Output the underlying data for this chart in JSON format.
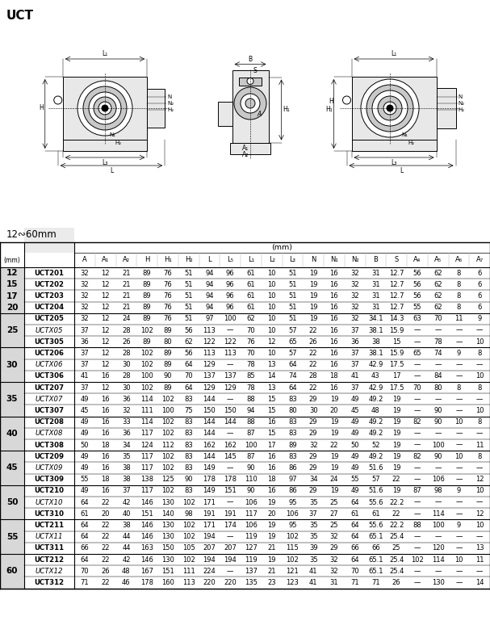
{
  "title": "UCT",
  "subtitle": "12∾60mm",
  "columns": [
    "A",
    "A₁",
    "A₂",
    "H",
    "H₁",
    "H₂",
    "L",
    "L₅",
    "L₁",
    "L₂",
    "L₃",
    "N",
    "N₁",
    "N₂",
    "B",
    "S",
    "A₄",
    "A₅",
    "A₆",
    "A₇"
  ],
  "rows": [
    {
      "shaft": "12",
      "model": "UCT201",
      "style": "bold",
      "vals": [
        "32",
        "12",
        "21",
        "89",
        "76",
        "51",
        "94",
        "96",
        "61",
        "10",
        "51",
        "19",
        "16",
        "32",
        "31",
        "12.7",
        "56",
        "62",
        "8",
        "6"
      ]
    },
    {
      "shaft": "15",
      "model": "UCT202",
      "style": "bold",
      "vals": [
        "32",
        "12",
        "21",
        "89",
        "76",
        "51",
        "94",
        "96",
        "61",
        "10",
        "51",
        "19",
        "16",
        "32",
        "31",
        "12.7",
        "56",
        "62",
        "8",
        "6"
      ]
    },
    {
      "shaft": "17",
      "model": "UCT203",
      "style": "bold",
      "vals": [
        "32",
        "12",
        "21",
        "89",
        "76",
        "51",
        "94",
        "96",
        "61",
        "10",
        "51",
        "19",
        "16",
        "32",
        "31",
        "12.7",
        "56",
        "62",
        "8",
        "6"
      ]
    },
    {
      "shaft": "20",
      "model": "UCT204",
      "style": "bold",
      "vals": [
        "32",
        "12",
        "21",
        "89",
        "76",
        "51",
        "94",
        "96",
        "61",
        "10",
        "51",
        "19",
        "16",
        "32",
        "31",
        "12.7",
        "55",
        "62",
        "8",
        "6"
      ]
    },
    {
      "shaft": "",
      "model": "UCT205",
      "style": "bold",
      "vals": [
        "32",
        "12",
        "24",
        "89",
        "76",
        "51",
        "97",
        "100",
        "62",
        "10",
        "51",
        "19",
        "16",
        "32",
        "34.1",
        "14.3",
        "63",
        "70",
        "11",
        "9"
      ]
    },
    {
      "shaft": "25",
      "model": "UCTX05",
      "style": "italic",
      "vals": [
        "37",
        "12",
        "28",
        "102",
        "89",
        "56",
        "113",
        "—",
        "70",
        "10",
        "57",
        "22",
        "16",
        "37",
        "38.1",
        "15.9",
        "—",
        "—",
        "—",
        "—"
      ]
    },
    {
      "shaft": "",
      "model": "UCT305",
      "style": "bold",
      "vals": [
        "36",
        "12",
        "26",
        "89",
        "80",
        "62",
        "122",
        "122",
        "76",
        "12",
        "65",
        "26",
        "16",
        "36",
        "38",
        "15",
        "—",
        "78",
        "—",
        "10"
      ]
    },
    {
      "shaft": "",
      "model": "UCT206",
      "style": "bold",
      "vals": [
        "37",
        "12",
        "28",
        "102",
        "89",
        "56",
        "113",
        "113",
        "70",
        "10",
        "57",
        "22",
        "16",
        "37",
        "38.1",
        "15.9",
        "65",
        "74",
        "9",
        "8"
      ]
    },
    {
      "shaft": "30",
      "model": "UCTX06",
      "style": "italic",
      "vals": [
        "37",
        "12",
        "30",
        "102",
        "89",
        "64",
        "129",
        "—",
        "78",
        "13",
        "64",
        "22",
        "16",
        "37",
        "42.9",
        "17.5",
        "—",
        "—",
        "—",
        "—"
      ]
    },
    {
      "shaft": "",
      "model": "UCT306",
      "style": "bold",
      "vals": [
        "41",
        "16",
        "28",
        "100",
        "90",
        "70",
        "137",
        "137",
        "85",
        "14",
        "74",
        "28",
        "18",
        "41",
        "43",
        "17",
        "—",
        "84",
        "—",
        "10"
      ]
    },
    {
      "shaft": "",
      "model": "UCT207",
      "style": "bold",
      "vals": [
        "37",
        "12",
        "30",
        "102",
        "89",
        "64",
        "129",
        "129",
        "78",
        "13",
        "64",
        "22",
        "16",
        "37",
        "42.9",
        "17.5",
        "70",
        "80",
        "8",
        "8"
      ]
    },
    {
      "shaft": "35",
      "model": "UCTX07",
      "style": "italic",
      "vals": [
        "49",
        "16",
        "36",
        "114",
        "102",
        "83",
        "144",
        "—",
        "88",
        "15",
        "83",
        "29",
        "19",
        "49",
        "49.2",
        "19",
        "—",
        "—",
        "—",
        "—"
      ]
    },
    {
      "shaft": "",
      "model": "UCT307",
      "style": "bold",
      "vals": [
        "45",
        "16",
        "32",
        "111",
        "100",
        "75",
        "150",
        "150",
        "94",
        "15",
        "80",
        "30",
        "20",
        "45",
        "48",
        "19",
        "—",
        "90",
        "—",
        "10"
      ]
    },
    {
      "shaft": "",
      "model": "UCT208",
      "style": "bold",
      "vals": [
        "49",
        "16",
        "33",
        "114",
        "102",
        "83",
        "144",
        "144",
        "88",
        "16",
        "83",
        "29",
        "19",
        "49",
        "49.2",
        "19",
        "82",
        "90",
        "10",
        "8"
      ]
    },
    {
      "shaft": "40",
      "model": "UCTX08",
      "style": "italic",
      "vals": [
        "49",
        "16",
        "36",
        "117",
        "102",
        "83",
        "144",
        "—",
        "87",
        "15",
        "83",
        "29",
        "19",
        "49",
        "49.2",
        "19",
        "—",
        "—",
        "—",
        "—"
      ]
    },
    {
      "shaft": "",
      "model": "UCT308",
      "style": "bold",
      "vals": [
        "50",
        "18",
        "34",
        "124",
        "112",
        "83",
        "162",
        "162",
        "100",
        "17",
        "89",
        "32",
        "22",
        "50",
        "52",
        "19",
        "—",
        "100",
        "—",
        "11"
      ]
    },
    {
      "shaft": "",
      "model": "UCT209",
      "style": "bold",
      "vals": [
        "49",
        "16",
        "35",
        "117",
        "102",
        "83",
        "144",
        "145",
        "87",
        "16",
        "83",
        "29",
        "19",
        "49",
        "49.2",
        "19",
        "82",
        "90",
        "10",
        "8"
      ]
    },
    {
      "shaft": "45",
      "model": "UCTX09",
      "style": "italic",
      "vals": [
        "49",
        "16",
        "38",
        "117",
        "102",
        "83",
        "149",
        "—",
        "90",
        "16",
        "86",
        "29",
        "19",
        "49",
        "51.6",
        "19",
        "—",
        "—",
        "—",
        "—"
      ]
    },
    {
      "shaft": "",
      "model": "UCT309",
      "style": "bold",
      "vals": [
        "55",
        "18",
        "38",
        "138",
        "125",
        "90",
        "178",
        "178",
        "110",
        "18",
        "97",
        "34",
        "24",
        "55",
        "57",
        "22",
        "—",
        "106",
        "—",
        "12"
      ]
    },
    {
      "shaft": "",
      "model": "UCT210",
      "style": "bold",
      "vals": [
        "49",
        "16",
        "37",
        "117",
        "102",
        "83",
        "149",
        "151",
        "90",
        "16",
        "86",
        "29",
        "19",
        "49",
        "51.6",
        "19",
        "87",
        "98",
        "9",
        "10"
      ]
    },
    {
      "shaft": "50",
      "model": "UCTX10",
      "style": "italic",
      "vals": [
        "64",
        "22",
        "42",
        "146",
        "130",
        "102",
        "171",
        "—",
        "106",
        "19",
        "95",
        "35",
        "25",
        "64",
        "55.6",
        "22.2",
        "—",
        "—",
        "—",
        "—"
      ]
    },
    {
      "shaft": "",
      "model": "UCT310",
      "style": "bold",
      "vals": [
        "61",
        "20",
        "40",
        "151",
        "140",
        "98",
        "191",
        "191",
        "117",
        "20",
        "106",
        "37",
        "27",
        "61",
        "61",
        "22",
        "—",
        "114",
        "—",
        "12"
      ]
    },
    {
      "shaft": "",
      "model": "UCT211",
      "style": "bold",
      "vals": [
        "64",
        "22",
        "38",
        "146",
        "130",
        "102",
        "171",
        "174",
        "106",
        "19",
        "95",
        "35",
        "25",
        "64",
        "55.6",
        "22.2",
        "88",
        "100",
        "9",
        "10"
      ]
    },
    {
      "shaft": "55",
      "model": "UCTX11",
      "style": "italic",
      "vals": [
        "64",
        "22",
        "44",
        "146",
        "130",
        "102",
        "194",
        "—",
        "119",
        "19",
        "102",
        "35",
        "32",
        "64",
        "65.1",
        "25.4",
        "—",
        "—",
        "—",
        "—"
      ]
    },
    {
      "shaft": "",
      "model": "UCT311",
      "style": "bold",
      "vals": [
        "66",
        "22",
        "44",
        "163",
        "150",
        "105",
        "207",
        "207",
        "127",
        "21",
        "115",
        "39",
        "29",
        "66",
        "66",
        "25",
        "—",
        "120",
        "—",
        "13"
      ]
    },
    {
      "shaft": "",
      "model": "UCT212",
      "style": "bold",
      "vals": [
        "64",
        "22",
        "42",
        "146",
        "130",
        "102",
        "194",
        "194",
        "119",
        "19",
        "102",
        "35",
        "32",
        "64",
        "65.1",
        "25.4",
        "102",
        "114",
        "10",
        "11"
      ]
    },
    {
      "shaft": "60",
      "model": "UCTX12",
      "style": "italic",
      "vals": [
        "70",
        "26",
        "48",
        "167",
        "151",
        "111",
        "224",
        "—",
        "137",
        "21",
        "121",
        "41",
        "32",
        "70",
        "65.1",
        "25.4",
        "—",
        "—",
        "—",
        "—"
      ]
    },
    {
      "shaft": "",
      "model": "UCT312",
      "style": "bold",
      "vals": [
        "71",
        "22",
        "46",
        "178",
        "160",
        "113",
        "220",
        "220",
        "135",
        "23",
        "123",
        "41",
        "31",
        "71",
        "71",
        "26",
        "—",
        "130",
        "—",
        "14"
      ]
    }
  ],
  "group_info": [
    {
      "shaft_lines": [
        "12",
        "15",
        "17",
        "20"
      ],
      "rows": [
        0,
        1,
        2,
        3
      ]
    },
    {
      "shaft_lines": [
        "25"
      ],
      "rows": [
        4,
        5,
        6
      ]
    },
    {
      "shaft_lines": [
        "30"
      ],
      "rows": [
        7,
        8,
        9
      ]
    },
    {
      "shaft_lines": [
        "35"
      ],
      "rows": [
        10,
        11,
        12
      ]
    },
    {
      "shaft_lines": [
        "40"
      ],
      "rows": [
        13,
        14,
        15
      ]
    },
    {
      "shaft_lines": [
        "45"
      ],
      "rows": [
        16,
        17,
        18
      ]
    },
    {
      "shaft_lines": [
        "50"
      ],
      "rows": [
        19,
        20,
        21
      ]
    },
    {
      "shaft_lines": [
        "55"
      ],
      "rows": [
        22,
        23,
        24
      ]
    },
    {
      "shaft_lines": [
        "60"
      ],
      "rows": [
        25,
        26,
        27
      ]
    }
  ],
  "bg_color": "#ffffff",
  "shaft_col_bg": "#d8d8d8",
  "line_color": "#000000",
  "font_size_title": 10,
  "font_size_header": 6.5,
  "font_size_data": 6.2,
  "font_size_shaft": 7.5
}
